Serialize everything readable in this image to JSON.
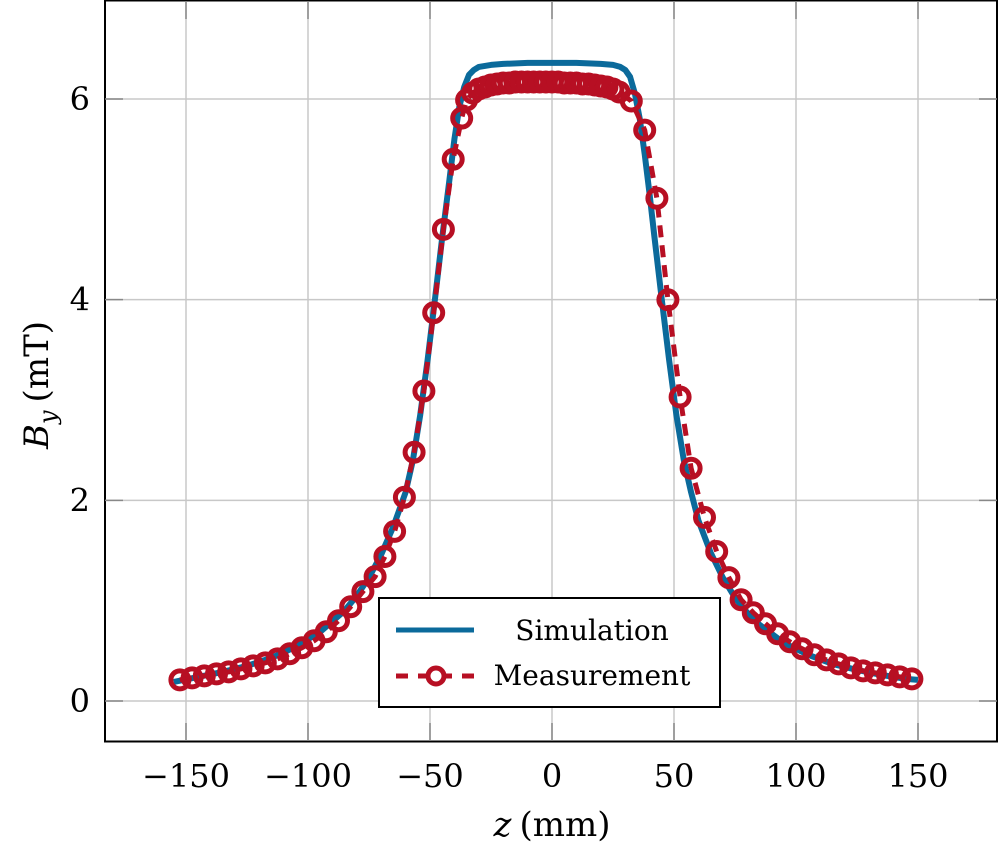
{
  "chart_data": {
    "type": "line",
    "title": "",
    "xlabel": "z (mm)",
    "ylabel": "B_y (mT)",
    "xlim": [
      -185,
      181
    ],
    "ylim": [
      -0.4,
      7.0
    ],
    "xticks": [
      -150,
      -100,
      -50,
      0,
      50,
      100,
      150
    ],
    "yticks": [
      0,
      2,
      4,
      6
    ],
    "grid": true,
    "legend_position": "lower center",
    "colors": {
      "simulation": "#0b6a9b",
      "measurement": "#b70f23"
    },
    "series": [
      {
        "name": "Simulation",
        "style": "solid line",
        "x": [
          -155,
          -145,
          -135,
          -125,
          -115,
          -105,
          -95,
          -85,
          -80,
          -75,
          -70,
          -65,
          -60,
          -57,
          -54,
          -51,
          -48,
          -45,
          -42,
          -40,
          -38,
          -36,
          -34,
          -32,
          -30,
          -25,
          -20,
          -10,
          0,
          10,
          20,
          25,
          28,
          30,
          32,
          34,
          36,
          38,
          40,
          42,
          45,
          48,
          51,
          54,
          57,
          60,
          65,
          70,
          75,
          80,
          85,
          95,
          105,
          115,
          125,
          135,
          145,
          150
        ],
        "y": [
          0.19,
          0.24,
          0.29,
          0.35,
          0.43,
          0.54,
          0.69,
          0.9,
          1.05,
          1.23,
          1.46,
          1.74,
          2.08,
          2.4,
          2.85,
          3.4,
          4.0,
          4.62,
          5.2,
          5.6,
          5.92,
          6.12,
          6.24,
          6.29,
          6.32,
          6.34,
          6.35,
          6.36,
          6.36,
          6.36,
          6.35,
          6.34,
          6.32,
          6.29,
          6.22,
          6.05,
          5.8,
          5.45,
          5.05,
          4.62,
          4.0,
          3.4,
          2.85,
          2.4,
          2.08,
          1.8,
          1.48,
          1.23,
          1.03,
          0.88,
          0.76,
          0.58,
          0.46,
          0.37,
          0.31,
          0.26,
          0.22,
          0.21
        ]
      },
      {
        "name": "Measurement",
        "style": "dashed line with circle markers",
        "x": [
          -152.5,
          -147.5,
          -142.5,
          -137.5,
          -132.5,
          -127.5,
          -122.5,
          -117.5,
          -112.5,
          -107.5,
          -102.5,
          -97.5,
          -92.5,
          -87.5,
          -82.5,
          -77.5,
          -72.5,
          -68.5,
          -64.5,
          -60.5,
          -56.5,
          -52.5,
          -48.5,
          -44.5,
          -40.5,
          -37.0,
          -35.0,
          -32.5,
          -30.0,
          -27.5,
          -25.0,
          -22.5,
          -20.0,
          -17.5,
          -15.0,
          -12.5,
          -10.0,
          -7.5,
          -5.0,
          -2.5,
          0.0,
          2.5,
          5.0,
          7.5,
          10.0,
          12.5,
          15.0,
          17.5,
          20.0,
          22.5,
          25.0,
          27.5,
          32.5,
          38.0,
          43.0,
          47.5,
          52.5,
          57.0,
          62.5,
          67.5,
          72.5,
          77.5,
          82.5,
          87.5,
          92.5,
          97.5,
          102.5,
          107.5,
          112.5,
          117.5,
          122.5,
          127.5,
          132.5,
          137.5,
          142.5,
          147.5
        ],
        "y": [
          0.21,
          0.23,
          0.25,
          0.27,
          0.29,
          0.32,
          0.35,
          0.38,
          0.42,
          0.47,
          0.53,
          0.6,
          0.69,
          0.8,
          0.94,
          1.09,
          1.24,
          1.44,
          1.69,
          2.03,
          2.48,
          3.09,
          3.87,
          4.7,
          5.4,
          5.81,
          5.99,
          6.06,
          6.1,
          6.12,
          6.14,
          6.15,
          6.16,
          6.16,
          6.17,
          6.17,
          6.17,
          6.17,
          6.17,
          6.17,
          6.17,
          6.17,
          6.16,
          6.16,
          6.16,
          6.15,
          6.15,
          6.14,
          6.13,
          6.12,
          6.1,
          6.07,
          5.98,
          5.69,
          5.01,
          4.0,
          3.03,
          2.32,
          1.83,
          1.49,
          1.23,
          1.01,
          0.88,
          0.77,
          0.67,
          0.59,
          0.52,
          0.46,
          0.41,
          0.37,
          0.33,
          0.3,
          0.28,
          0.26,
          0.24,
          0.22
        ]
      }
    ]
  },
  "axes": {
    "xlabel_var": "z",
    "xlabel_unit": "(mm)",
    "ylabel_var": "B",
    "ylabel_sub": "y",
    "ylabel_unit": "(mT)",
    "xtick_labels": [
      "−150",
      "−100",
      "−50",
      "0",
      "50",
      "100",
      "150"
    ],
    "ytick_labels": [
      "0",
      "2",
      "4",
      "6"
    ]
  },
  "legend": {
    "items": [
      {
        "label": "Simulation"
      },
      {
        "label": "Measurement"
      }
    ]
  }
}
